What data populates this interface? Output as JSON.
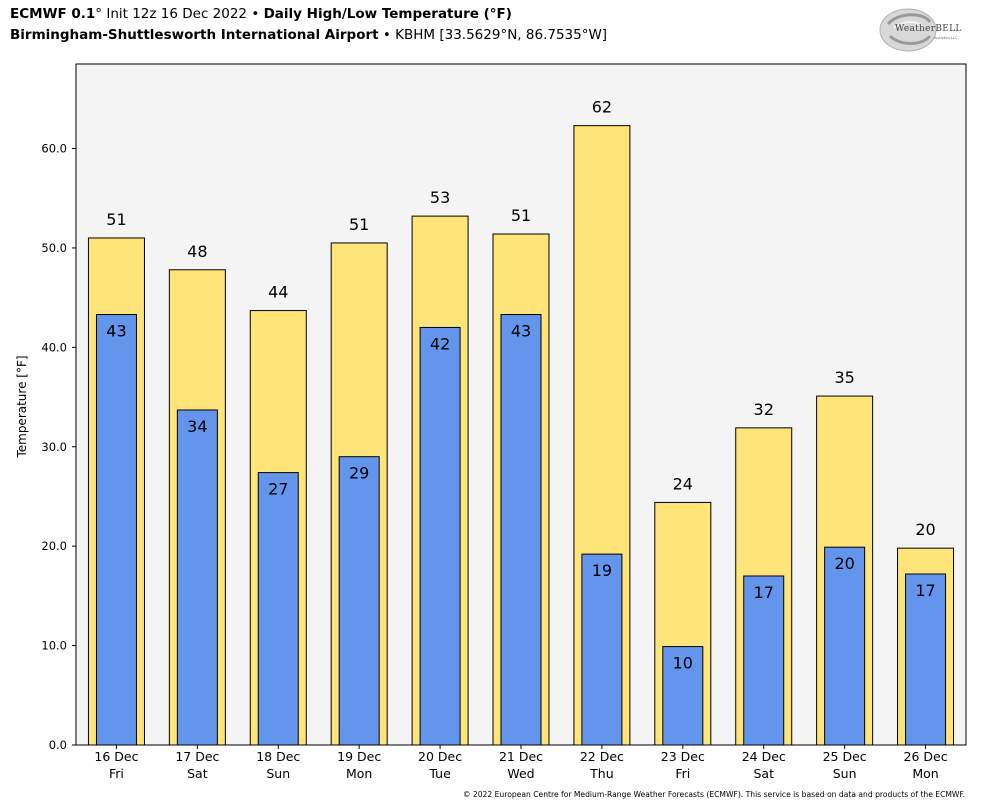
{
  "header": {
    "model": "ECMWF 0.1",
    "deg": "°",
    "init": "Init 12z 16 Dec 2022",
    "sep": "•",
    "product": "Daily High/Low Temperature (°F)",
    "location": "Birmingham-Shuttlesworth International Airport",
    "station": "KBHM [33.5629°N, 86.7535°W]"
  },
  "logo": {
    "text": "WeatherBELL",
    "sub": "Analytics LLC"
  },
  "footer": "© 2022 European Centre for Medium-Range Weather Forecasts (ECMWF). This service is based on data and products of the ECMWF.",
  "colors": {
    "high": "#ffe47a",
    "low": "#6495ed",
    "plot_bg": "#f4f4f4"
  },
  "chart_data": {
    "type": "bar",
    "ylabel": "Temperature [°F]",
    "ylim": [
      0,
      68.5
    ],
    "yticks": [
      0,
      10,
      20,
      30,
      40,
      50,
      60
    ],
    "yticklabels": [
      "0.0",
      "10.0",
      "20.0",
      "30.0",
      "40.0",
      "50.0",
      "60.0"
    ],
    "categories": [
      [
        "16 Dec",
        "Fri"
      ],
      [
        "17 Dec",
        "Sat"
      ],
      [
        "18 Dec",
        "Sun"
      ],
      [
        "19 Dec",
        "Mon"
      ],
      [
        "20 Dec",
        "Tue"
      ],
      [
        "21 Dec",
        "Wed"
      ],
      [
        "22 Dec",
        "Thu"
      ],
      [
        "23 Dec",
        "Fri"
      ],
      [
        "24 Dec",
        "Sat"
      ],
      [
        "25 Dec",
        "Sun"
      ],
      [
        "26 Dec",
        "Mon"
      ]
    ],
    "series": [
      {
        "values": [
          51,
          47.8,
          43.7,
          50.5,
          53.2,
          51.4,
          62.3,
          24.4,
          31.9,
          35.1,
          19.8
        ],
        "labels": [
          "51",
          "48",
          "44",
          "51",
          "53",
          "51",
          "62",
          "24",
          "32",
          "35",
          "20"
        ]
      },
      {
        "values": [
          43.3,
          33.7,
          27.4,
          29,
          42,
          43.3,
          19.2,
          9.9,
          17,
          19.9,
          17.2
        ],
        "labels": [
          "43",
          "34",
          "27",
          "29",
          "42",
          "43",
          "19",
          "10",
          "17",
          "20",
          "17"
        ]
      }
    ],
    "grid": false,
    "legend": "none"
  }
}
